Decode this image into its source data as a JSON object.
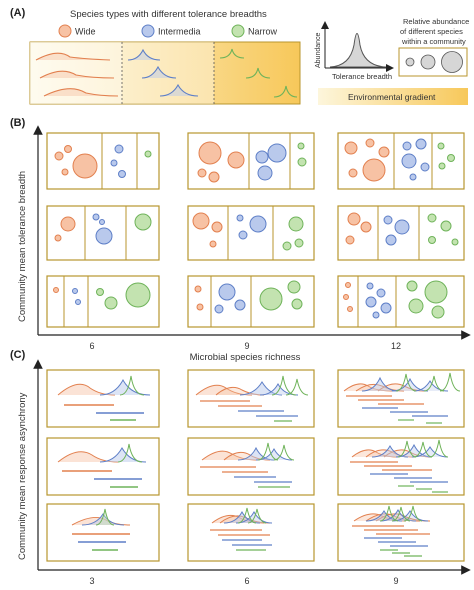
{
  "panel_a": {
    "label": "(A)",
    "title": "Species types with different tolerance breadths",
    "legend": [
      {
        "name": "Wide",
        "color": "#f2a27a",
        "stroke": "#e2804f"
      },
      {
        "name": "Intermedia",
        "color": "#a9bde8",
        "stroke": "#5e7fc7"
      },
      {
        "name": "Narrow",
        "color": "#b6dca0",
        "stroke": "#6fb35a"
      }
    ],
    "curve_y_label": "Abundance",
    "curve_x_label": "Tolerance breadth",
    "relative_text": [
      "Relative abundance",
      "of different species",
      "within a community"
    ],
    "gradient_label": "Environmental gradient"
  },
  "panel_b": {
    "label": "(B)",
    "y_label": "Community mean tolerance breadth",
    "x_label": "Microbial species richness",
    "x_ticks": [
      "6",
      "9",
      "12"
    ]
  },
  "panel_c": {
    "label": "(C)",
    "y_label": "Community mean response asynchrony",
    "x_ticks": [
      "3",
      "6",
      "9"
    ]
  },
  "colors": {
    "frame": "#b8962e",
    "wide": "#e2804f",
    "wide_fill": "#f7c2a4",
    "inter": "#5e7fc7",
    "inter_fill": "#b9c9ec",
    "narrow": "#6fb35a",
    "narrow_fill": "#c3e3b0",
    "gradient_start": "#fdf6dc",
    "gradient_end": "#f7c85a"
  }
}
